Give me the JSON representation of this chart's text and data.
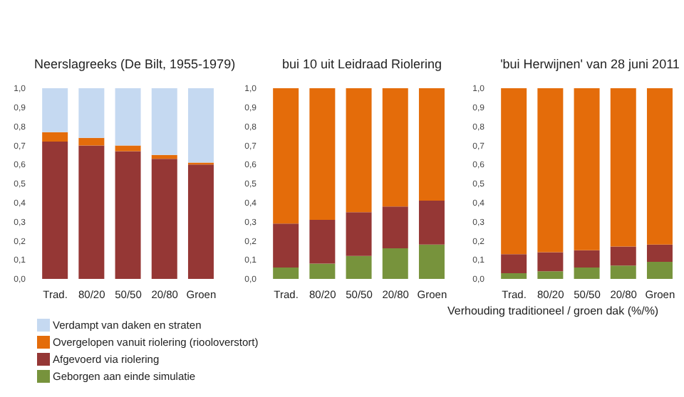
{
  "chart_data": [
    {
      "type": "bar",
      "stacked": true,
      "title": "Neerslagreeks (De Bilt, 1955-1979)",
      "categories": [
        "Trad.",
        "80/20",
        "50/50",
        "20/80",
        "Groen"
      ],
      "ylim": [
        0,
        1
      ],
      "yticks": [
        {
          "value": 0,
          "label": "0,0"
        },
        {
          "value": 0.1,
          "label": "0,1"
        },
        {
          "value": 0.2,
          "label": "0,2"
        },
        {
          "value": 0.3,
          "label": "0,3"
        },
        {
          "value": 0.4,
          "label": "0,4"
        },
        {
          "value": 0.5,
          "label": "0,5"
        },
        {
          "value": 0.6,
          "label": "0,6"
        },
        {
          "value": 0.7,
          "label": "0,7"
        },
        {
          "value": 0.8,
          "label": "0,8"
        },
        {
          "value": 0.9,
          "label": "0,9"
        },
        {
          "value": 1,
          "label": "1,0"
        }
      ],
      "legend": "bottom",
      "series": [
        {
          "name": "Geborgen aan einde simulatie",
          "color": "#77933c",
          "values": [
            0,
            0,
            0,
            0,
            0
          ]
        },
        {
          "name": "Afgevoerd via riolering",
          "color": "#953735",
          "values": [
            0.72,
            0.7,
            0.67,
            0.63,
            0.6
          ]
        },
        {
          "name": "Overgelopen vanuit riolering (riooloverstort)",
          "color": "#e46c0a",
          "values": [
            0.05,
            0.04,
            0.03,
            0.02,
            0.01
          ]
        },
        {
          "name": "Verdampt van daken en straten",
          "color": "#c5d9f1",
          "values": [
            0.23,
            0.26,
            0.3,
            0.35,
            0.39
          ]
        }
      ]
    },
    {
      "type": "bar",
      "stacked": true,
      "title": "bui 10 uit Leidraad Riolering",
      "categories": [
        "Trad.",
        "80/20",
        "50/50",
        "20/80",
        "Groen"
      ],
      "ylim": [
        0,
        1
      ],
      "yticks": [
        {
          "value": 0,
          "label": "0,0"
        },
        {
          "value": 0.1,
          "label": "0,1"
        },
        {
          "value": 0.2,
          "label": "0,2"
        },
        {
          "value": 0.3,
          "label": "0,3"
        },
        {
          "value": 0.4,
          "label": "0,4"
        },
        {
          "value": 0.5,
          "label": "0,5"
        },
        {
          "value": 0.6,
          "label": "0,6"
        },
        {
          "value": 0.7,
          "label": "0,7"
        },
        {
          "value": 0.8,
          "label": "0,8"
        },
        {
          "value": 0.9,
          "label": "0,9"
        },
        {
          "value": 1,
          "label": "1,0"
        }
      ],
      "series": [
        {
          "color": "#77933c",
          "values": [
            0.06,
            0.08,
            0.12,
            0.16,
            0.18
          ]
        },
        {
          "color": "#953735",
          "values": [
            0.23,
            0.23,
            0.23,
            0.22,
            0.23
          ]
        },
        {
          "color": "#e46c0a",
          "values": [
            0.71,
            0.69,
            0.65,
            0.62,
            0.59
          ]
        }
      ]
    },
    {
      "type": "bar",
      "stacked": true,
      "title": "'bui Herwijnen' van 28 juni 2011",
      "xlabel": "Verhouding traditioneel  / groen dak (%/%)",
      "categories": [
        "Trad.",
        "80/20",
        "50/50",
        "20/80",
        "Groen"
      ],
      "ylim": [
        0,
        1
      ],
      "yticks": [
        {
          "value": 0,
          "label": "0,0"
        },
        {
          "value": 0.1,
          "label": "0,1"
        },
        {
          "value": 0.2,
          "label": "0,2"
        },
        {
          "value": 0.3,
          "label": "0,3"
        },
        {
          "value": 0.4,
          "label": "0,4"
        },
        {
          "value": 0.5,
          "label": "0,5"
        },
        {
          "value": 0.6,
          "label": "0,6"
        },
        {
          "value": 0.7,
          "label": "0,7"
        },
        {
          "value": 0.8,
          "label": "0,8"
        },
        {
          "value": 0.9,
          "label": "0,9"
        },
        {
          "value": 1,
          "label": "1,0"
        }
      ],
      "series": [
        {
          "color": "#77933c",
          "values": [
            0.03,
            0.04,
            0.06,
            0.07,
            0.09
          ]
        },
        {
          "color": "#953735",
          "values": [
            0.1,
            0.1,
            0.09,
            0.1,
            0.09
          ]
        },
        {
          "color": "#e46c0a",
          "values": [
            0.87,
            0.86,
            0.85,
            0.83,
            0.82
          ]
        }
      ]
    }
  ]
}
